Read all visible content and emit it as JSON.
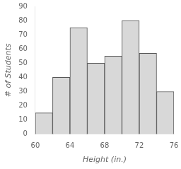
{
  "chart_data": {
    "type": "histogram",
    "xlabel": "Height (in.)",
    "ylabel": "# of Students",
    "bins": [
      60,
      62,
      64,
      66,
      68,
      70,
      72,
      74,
      76
    ],
    "values": [
      15,
      40,
      75,
      50,
      55,
      80,
      57,
      30
    ],
    "color": "#d8d8d8",
    "xlim": [
      60,
      76
    ],
    "ylim": [
      0,
      90
    ],
    "xticks": [
      60,
      64,
      68,
      72,
      76
    ],
    "yticks": [
      0,
      10,
      20,
      30,
      40,
      50,
      60,
      70,
      80,
      90
    ],
    "grid": false
  }
}
